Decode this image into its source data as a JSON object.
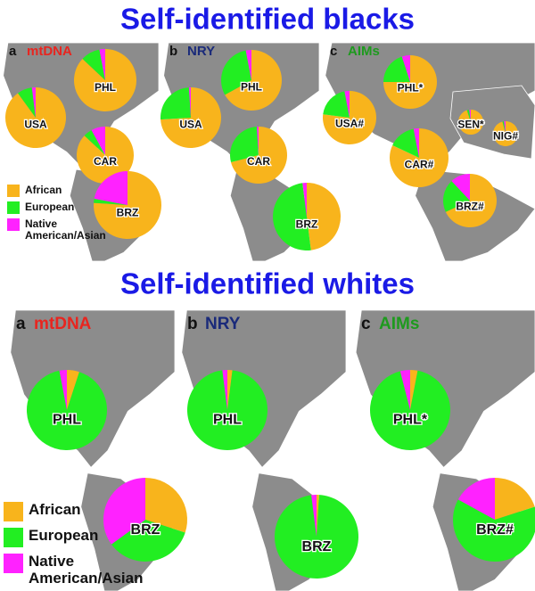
{
  "legend": [
    {
      "name": "African",
      "color": "#f8b41c"
    },
    {
      "name": "European",
      "color": "#22ee22"
    },
    {
      "name": "Native American/Asian",
      "color": "#ff22ff"
    }
  ],
  "sections": [
    {
      "title": "Self-identified blacks",
      "panels": [
        {
          "letter": "a",
          "title": "mtDNA",
          "title_color": "#e8251f",
          "pies": [
            {
              "label": "PHL",
              "type": "pie",
              "values": [
                87,
                10,
                3
              ]
            },
            {
              "label": "USA",
              "type": "pie",
              "values": [
                90,
                8,
                2
              ]
            },
            {
              "label": "CAR",
              "type": "pie",
              "values": [
                87,
                5,
                8
              ]
            },
            {
              "label": "BRZ",
              "type": "pie",
              "values": [
                76,
                2,
                22
              ]
            }
          ]
        },
        {
          "letter": "b",
          "title": "NRY",
          "title_color": "#1a2a7a",
          "pies": [
            {
              "label": "PHL",
              "type": "pie",
              "values": [
                67,
                30,
                3
              ]
            },
            {
              "label": "USA",
              "type": "pie",
              "values": [
                74,
                25,
                1
              ]
            },
            {
              "label": "CAR",
              "type": "pie",
              "values": [
                71,
                28,
                1
              ]
            },
            {
              "label": "BRZ",
              "type": "pie",
              "values": [
                48,
                50,
                2
              ]
            }
          ]
        },
        {
          "letter": "c",
          "title": "AIMs",
          "title_color": "#1e9a1e",
          "pies": [
            {
              "label": "PHL*",
              "type": "pie",
              "values": [
                75,
                20,
                5
              ]
            },
            {
              "label": "USA#",
              "type": "pie",
              "values": [
                77,
                20,
                3
              ]
            },
            {
              "label": "CAR#",
              "type": "pie",
              "values": [
                82,
                15,
                3
              ]
            },
            {
              "label": "BRZ#",
              "type": "pie",
              "values": [
                68,
                20,
                12
              ]
            },
            {
              "label": "SEN*",
              "type": "pie",
              "values": [
                95,
                3,
                2
              ]
            },
            {
              "label": "NIG#",
              "type": "pie",
              "values": [
                96,
                2,
                2
              ]
            }
          ]
        }
      ]
    },
    {
      "title": "Self-identified whites",
      "panels": [
        {
          "letter": "a",
          "title": "mtDNA",
          "title_color": "#e8251f",
          "pies": [
            {
              "label": "PHL",
              "type": "pie",
              "values": [
                5,
                92,
                3
              ]
            },
            {
              "label": "BRZ",
              "type": "pie",
              "values": [
                30,
                35,
                35
              ]
            }
          ]
        },
        {
          "letter": "b",
          "title": "NRY",
          "title_color": "#1a2a7a",
          "pies": [
            {
              "label": "PHL",
              "type": "pie",
              "values": [
                2,
                96,
                2
              ]
            },
            {
              "label": "BRZ",
              "type": "pie",
              "values": [
                1,
                97,
                2
              ]
            }
          ]
        },
        {
          "letter": "c",
          "title": "AIMs",
          "title_color": "#1e9a1e",
          "pies": [
            {
              "label": "PHL*",
              "type": "pie",
              "values": [
                3,
                93,
                4
              ]
            },
            {
              "label": "BRZ#",
              "type": "pie",
              "values": [
                20,
                63,
                17
              ]
            }
          ]
        }
      ]
    }
  ]
}
